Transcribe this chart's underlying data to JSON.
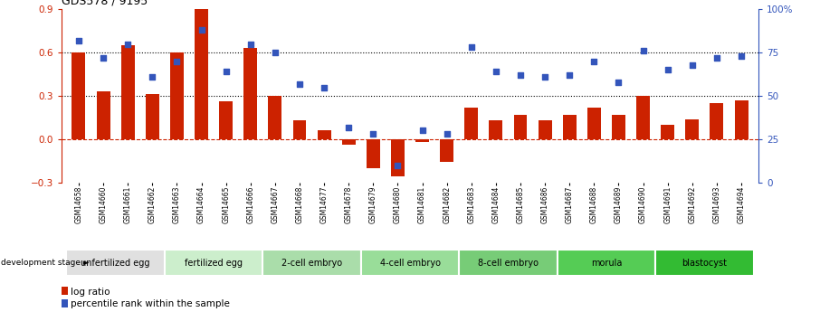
{
  "title": "GDS578 / 9195",
  "samples": [
    "GSM14658",
    "GSM14660",
    "GSM14661",
    "GSM14662",
    "GSM14663",
    "GSM14664",
    "GSM14665",
    "GSM14666",
    "GSM14667",
    "GSM14668",
    "GSM14677",
    "GSM14678",
    "GSM14679",
    "GSM14680",
    "GSM14681",
    "GSM14682",
    "GSM14683",
    "GSM14684",
    "GSM14685",
    "GSM14686",
    "GSM14687",
    "GSM14688",
    "GSM14689",
    "GSM14690",
    "GSM14691",
    "GSM14692",
    "GSM14693",
    "GSM14694"
  ],
  "log_ratio": [
    0.6,
    0.33,
    0.65,
    0.31,
    0.6,
    0.91,
    0.26,
    0.63,
    0.3,
    0.13,
    0.06,
    -0.04,
    -0.2,
    -0.26,
    -0.02,
    -0.16,
    0.22,
    0.13,
    0.17,
    0.13,
    0.17,
    0.22,
    0.17,
    0.3,
    0.1,
    0.14,
    0.25,
    0.27
  ],
  "percentile_rank": [
    82,
    72,
    80,
    61,
    70,
    88,
    64,
    80,
    75,
    57,
    55,
    32,
    28,
    10,
    30,
    28,
    78,
    64,
    62,
    61,
    62,
    70,
    58,
    76,
    65,
    68,
    72,
    73
  ],
  "bar_color": "#cc2200",
  "dot_color": "#3355bb",
  "ylim_left": [
    -0.3,
    0.9
  ],
  "ylim_right": [
    0,
    100
  ],
  "yticks_left": [
    -0.3,
    0.0,
    0.3,
    0.6,
    0.9
  ],
  "yticks_right": [
    0,
    25,
    50,
    75,
    100
  ],
  "hlines": [
    0.3,
    0.6
  ],
  "stages": [
    {
      "label": "unfertilized egg",
      "start": 0,
      "end": 4,
      "color": "#e0e0e0"
    },
    {
      "label": "fertilized egg",
      "start": 4,
      "end": 8,
      "color": "#cceecc"
    },
    {
      "label": "2-cell embryo",
      "start": 8,
      "end": 12,
      "color": "#aaddaa"
    },
    {
      "label": "4-cell embryo",
      "start": 12,
      "end": 16,
      "color": "#99dd99"
    },
    {
      "label": "8-cell embryo",
      "start": 16,
      "end": 20,
      "color": "#77cc77"
    },
    {
      "label": "morula",
      "start": 20,
      "end": 24,
      "color": "#55cc55"
    },
    {
      "label": "blastocyst",
      "start": 24,
      "end": 28,
      "color": "#33bb33"
    }
  ]
}
